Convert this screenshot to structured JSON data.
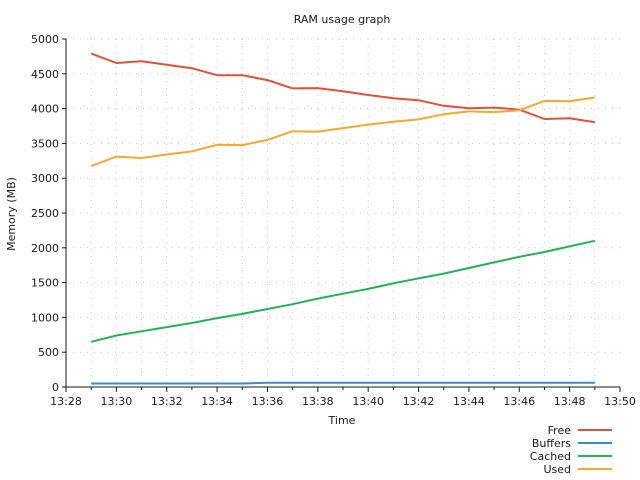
{
  "chart_data": {
    "type": "line",
    "title": "RAM usage graph",
    "xlabel": "Time",
    "ylabel": "Memory (MB)",
    "x": [
      "13:29",
      "13:30",
      "13:31",
      "13:32",
      "13:33",
      "13:34",
      "13:35",
      "13:36",
      "13:37",
      "13:38",
      "13:39",
      "13:40",
      "13:41",
      "13:42",
      "13:43",
      "13:44",
      "13:45",
      "13:46",
      "13:47",
      "13:48",
      "13:49"
    ],
    "xticks": [
      "13:28",
      "13:30",
      "13:32",
      "13:34",
      "13:36",
      "13:38",
      "13:40",
      "13:42",
      "13:44",
      "13:46",
      "13:48",
      "13:50"
    ],
    "xlim": [
      "13:28",
      "13:50"
    ],
    "yticks": [
      0,
      500,
      1000,
      1500,
      2000,
      2500,
      3000,
      3500,
      4000,
      4500,
      5000
    ],
    "ylim": [
      0,
      5000
    ],
    "grid": true,
    "legend_position": "bottom-right",
    "series": [
      {
        "name": "Free",
        "color": "#e0503a",
        "values": [
          4790,
          4655,
          4680,
          4630,
          4580,
          4480,
          4480,
          4410,
          4290,
          4295,
          4250,
          4195,
          4150,
          4120,
          4040,
          4005,
          4015,
          3985,
          3850,
          3860,
          3805
        ]
      },
      {
        "name": "Buffers",
        "color": "#2e8fd9",
        "values": [
          50,
          50,
          50,
          50,
          50,
          50,
          50,
          60,
          60,
          60,
          60,
          60,
          60,
          60,
          60,
          60,
          60,
          60,
          60,
          60,
          60
        ]
      },
      {
        "name": "Cached",
        "color": "#22b35a",
        "values": [
          650,
          740,
          800,
          860,
          920,
          990,
          1050,
          1120,
          1190,
          1270,
          1340,
          1410,
          1490,
          1560,
          1630,
          1710,
          1790,
          1870,
          1940,
          2020,
          2100
        ]
      },
      {
        "name": "Used",
        "color": "#f5a830",
        "values": [
          3175,
          3310,
          3290,
          3340,
          3385,
          3480,
          3475,
          3550,
          3675,
          3670,
          3720,
          3770,
          3810,
          3845,
          3920,
          3960,
          3950,
          3975,
          4110,
          4105,
          4160
        ]
      }
    ]
  }
}
